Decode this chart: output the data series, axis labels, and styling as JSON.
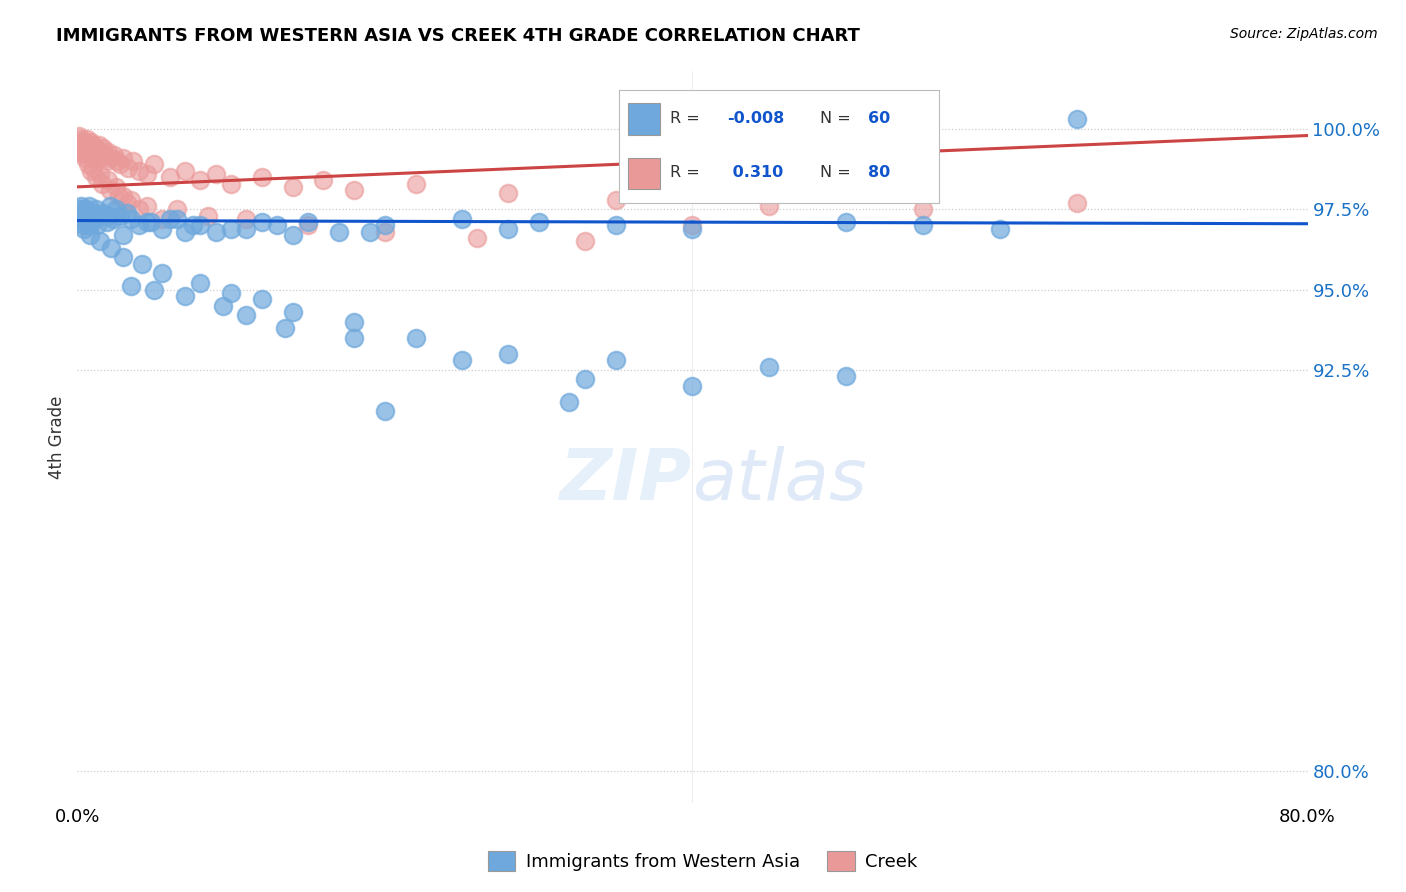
{
  "title": "IMMIGRANTS FROM WESTERN ASIA VS CREEK 4TH GRADE CORRELATION CHART",
  "source": "Source: ZipAtlas.com",
  "ylabel": "4th Grade",
  "ytick_vals": [
    80.0,
    92.5,
    95.0,
    97.5,
    100.0
  ],
  "ytick_labels": [
    "80.0%",
    "92.5%",
    "95.0%",
    "97.5%",
    "100.0%"
  ],
  "xlim": [
    0.0,
    80.0
  ],
  "ylim": [
    79.0,
    101.8
  ],
  "blue_color": "#6fa8dc",
  "pink_color": "#ea9999",
  "trendline_blue_color": "#1155cc",
  "trendline_pink_color": "#cc4444",
  "watermark_zip": "ZIP",
  "watermark_atlas": "atlas",
  "legend_text_color": "#1155cc",
  "blue_scatter_x": [
    0.1,
    0.15,
    0.2,
    0.25,
    0.3,
    0.35,
    0.4,
    0.45,
    0.5,
    0.55,
    0.6,
    0.65,
    0.7,
    0.75,
    0.8,
    0.85,
    0.9,
    1.0,
    1.1,
    1.2,
    1.3,
    1.5,
    1.7,
    1.9,
    2.1,
    2.3,
    2.5,
    2.8,
    3.2,
    3.5,
    4.0,
    4.5,
    5.5,
    6.5,
    7.5,
    9.0,
    11.0,
    13.0,
    15.0,
    17.0,
    20.0,
    25.0,
    30.0,
    35.0,
    40.0,
    50.0,
    55.0,
    60.0,
    3.0,
    7.0,
    10.0,
    14.0,
    19.0,
    28.0,
    2.0,
    4.8,
    6.0,
    8.0,
    12.0,
    65.0
  ],
  "blue_scatter_y": [
    97.5,
    97.3,
    97.2,
    97.6,
    97.4,
    97.1,
    97.0,
    96.9,
    97.2,
    97.5,
    97.3,
    97.4,
    97.1,
    97.6,
    97.2,
    97.0,
    97.3,
    97.4,
    97.2,
    97.5,
    97.0,
    97.3,
    97.4,
    97.1,
    97.6,
    97.2,
    97.5,
    97.3,
    97.4,
    97.2,
    97.0,
    97.1,
    96.9,
    97.2,
    97.0,
    96.8,
    96.9,
    97.0,
    97.1,
    96.8,
    97.0,
    97.2,
    97.1,
    97.0,
    96.9,
    97.1,
    97.0,
    96.9,
    96.7,
    96.8,
    96.9,
    96.7,
    96.8,
    96.9,
    97.3,
    97.1,
    97.2,
    97.0,
    97.1,
    100.3
  ],
  "blue_outlier_x": [
    0.8,
    1.5,
    2.2,
    3.0,
    4.2,
    5.5,
    8.0,
    10.0,
    12.0,
    14.0,
    18.0,
    22.0,
    28.0,
    35.0,
    45.0,
    50.0,
    32.0,
    20.0
  ],
  "blue_outlier_y": [
    96.7,
    96.5,
    96.3,
    96.0,
    95.8,
    95.5,
    95.2,
    94.9,
    94.7,
    94.3,
    94.0,
    93.5,
    93.0,
    92.8,
    92.6,
    92.3,
    91.5,
    91.2
  ],
  "blue_low_x": [
    3.5,
    5.0,
    7.0,
    9.5,
    11.0,
    13.5,
    18.0,
    25.0,
    33.0,
    40.0
  ],
  "blue_low_y": [
    95.1,
    95.0,
    94.8,
    94.5,
    94.2,
    93.8,
    93.5,
    92.8,
    92.2,
    92.0
  ],
  "pink_scatter_x": [
    0.1,
    0.15,
    0.2,
    0.25,
    0.3,
    0.35,
    0.4,
    0.45,
    0.5,
    0.55,
    0.6,
    0.65,
    0.7,
    0.75,
    0.8,
    0.85,
    0.9,
    0.95,
    1.0,
    1.1,
    1.2,
    1.3,
    1.4,
    1.5,
    1.6,
    1.7,
    1.8,
    1.9,
    2.0,
    2.2,
    2.4,
    2.6,
    2.8,
    3.0,
    3.3,
    3.6,
    4.0,
    4.5,
    5.0,
    6.0,
    7.0,
    8.0,
    9.0,
    10.0,
    12.0,
    14.0,
    16.0,
    18.0,
    22.0,
    28.0,
    35.0,
    45.0,
    55.0,
    65.0,
    1.0,
    1.5,
    2.0,
    2.5,
    3.0,
    3.5,
    4.5,
    6.5,
    8.5,
    11.0,
    15.0,
    20.0,
    26.0,
    33.0,
    0.3,
    0.5,
    0.7,
    0.9,
    1.2,
    1.6,
    2.1,
    2.7,
    3.2,
    4.0,
    5.5,
    40.0
  ],
  "pink_scatter_y": [
    99.8,
    99.6,
    99.5,
    99.7,
    99.4,
    99.6,
    99.3,
    99.5,
    99.2,
    99.6,
    99.4,
    99.7,
    99.3,
    99.5,
    99.2,
    99.4,
    99.6,
    99.1,
    99.5,
    99.3,
    99.4,
    99.2,
    99.5,
    99.1,
    99.3,
    99.4,
    99.2,
    99.0,
    99.3,
    99.1,
    99.2,
    99.0,
    98.9,
    99.1,
    98.8,
    99.0,
    98.7,
    98.6,
    98.9,
    98.5,
    98.7,
    98.4,
    98.6,
    98.3,
    98.5,
    98.2,
    98.4,
    98.1,
    98.3,
    98.0,
    97.8,
    97.6,
    97.5,
    97.7,
    98.8,
    98.6,
    98.4,
    98.2,
    97.9,
    97.8,
    97.6,
    97.5,
    97.3,
    97.2,
    97.0,
    96.8,
    96.6,
    96.5,
    99.3,
    99.1,
    98.9,
    98.7,
    98.5,
    98.3,
    98.1,
    97.9,
    97.7,
    97.5,
    97.2,
    97.0
  ],
  "blue_trend_x": [
    0,
    80
  ],
  "blue_trend_y": [
    97.15,
    97.05
  ],
  "pink_trend_x": [
    0,
    80
  ],
  "pink_trend_y": [
    98.2,
    99.8
  ]
}
